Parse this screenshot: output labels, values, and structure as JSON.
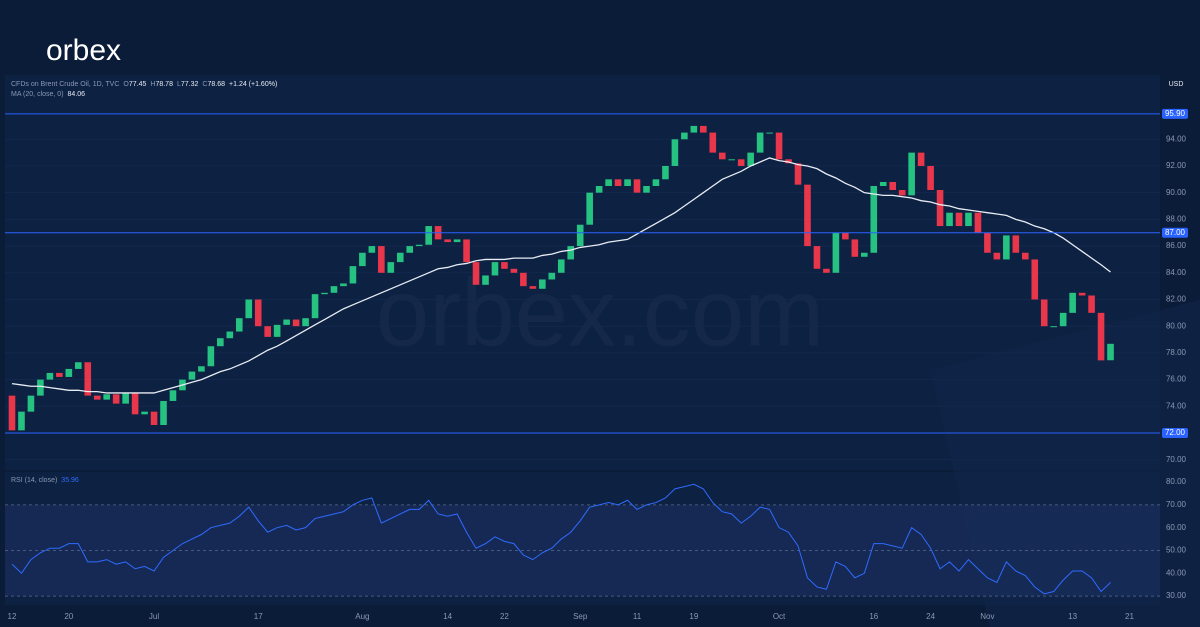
{
  "brand": "orbex",
  "watermark": "orbex.com",
  "chart_data": [
    {
      "type": "candlestick",
      "header": {
        "symbol": "CFDs on Brent Crude Oil, 1D, TVC",
        "open_label": "O",
        "high_label": "H",
        "high": 78.78,
        "low_label": "L",
        "low": 77.32,
        "close_label": "C",
        "change": "+1.24 (+1.60%)"
      },
      "currency": "USD",
      "categories": [
        "12",
        null,
        null,
        null,
        null,
        null,
        "20",
        null,
        null,
        null,
        null,
        null,
        null,
        null,
        null,
        "Jul",
        null,
        null,
        null,
        null,
        null,
        null,
        null,
        null,
        null,
        null,
        "17",
        null,
        null,
        null,
        null,
        null,
        null,
        null,
        null,
        null,
        null,
        "Aug",
        null,
        null,
        null,
        null,
        null,
        null,
        null,
        null,
        "14",
        null,
        null,
        null,
        null,
        null,
        "22",
        null,
        null,
        null,
        null,
        null,
        null,
        null,
        "Sep",
        null,
        null,
        null,
        null,
        null,
        "11",
        null,
        null,
        null,
        null,
        null,
        "19",
        null,
        null,
        null,
        null,
        null,
        null,
        null,
        null,
        "Oct",
        null,
        null,
        null,
        null,
        null,
        null,
        null,
        null,
        null,
        "16",
        null,
        null,
        null,
        null,
        null,
        "24",
        null,
        null,
        null,
        null,
        null,
        "Nov",
        null,
        null,
        null,
        null,
        null,
        null,
        null,
        null,
        "13",
        null,
        null,
        null,
        null,
        null,
        "21"
      ],
      "open": [
        74.8,
        72.2,
        73.6,
        74.8,
        76.0,
        76.5,
        76.2,
        76.8,
        77.3,
        74.8,
        74.5,
        74.9,
        74.2,
        75.0,
        73.4,
        73.6,
        72.6,
        74.4,
        75.2,
        76.0,
        76.6,
        77.0,
        78.5,
        79.1,
        79.6,
        80.6,
        82.0,
        80.0,
        79.2,
        80.1,
        80.5,
        80.0,
        80.6,
        82.4,
        82.5,
        83.0,
        83.2,
        84.5,
        85.5,
        86.0,
        84.0,
        84.8,
        85.5,
        86.0,
        86.1,
        87.5,
        86.5,
        86.3,
        86.5,
        84.8,
        83.1,
        83.8,
        84.8,
        84.3,
        84.0,
        83.0,
        82.8,
        83.5,
        84.0,
        85.0,
        86.0,
        87.6,
        90.0,
        90.5,
        91.0,
        90.5,
        91.0,
        90.0,
        90.5,
        91.0,
        92.0,
        94.0,
        94.5,
        95.0,
        94.5,
        93.0,
        92.5,
        92.5,
        92.0,
        93.0,
        94.5,
        94.5,
        92.5,
        92.2,
        90.6,
        86.0,
        84.3,
        84.0,
        87.0,
        86.5,
        85.2,
        85.5,
        90.5,
        90.8,
        90.2,
        89.8,
        93.0,
        92.0,
        90.2,
        87.5,
        88.5,
        87.5,
        88.5,
        87.0,
        85.5,
        85.0,
        86.8,
        85.5,
        85.0,
        82.0,
        80.0,
        80.0,
        81.0,
        82.5,
        82.3,
        81.0,
        77.45,
        null,
        null
      ],
      "close": [
        72.2,
        73.6,
        74.8,
        76.0,
        76.5,
        76.2,
        76.8,
        77.3,
        74.8,
        74.5,
        74.9,
        74.2,
        75.0,
        73.4,
        73.6,
        72.6,
        74.4,
        75.2,
        76.0,
        76.6,
        77.0,
        78.5,
        79.1,
        79.6,
        80.6,
        82.0,
        80.0,
        79.2,
        80.1,
        80.5,
        80.0,
        80.6,
        82.4,
        82.5,
        83.0,
        83.2,
        84.5,
        85.5,
        86.0,
        84.0,
        84.8,
        85.5,
        86.0,
        86.1,
        87.5,
        86.5,
        86.3,
        86.5,
        84.8,
        83.1,
        83.8,
        84.8,
        84.3,
        84.0,
        83.0,
        82.8,
        83.5,
        84.0,
        85.0,
        86.0,
        87.6,
        90.0,
        90.5,
        91.0,
        90.5,
        91.0,
        90.0,
        90.5,
        91.0,
        92.0,
        94.0,
        94.5,
        95.0,
        94.5,
        93.0,
        92.5,
        92.5,
        92.0,
        93.0,
        94.5,
        94.5,
        92.5,
        92.2,
        90.6,
        86.0,
        84.3,
        84.0,
        87.0,
        86.5,
        85.2,
        85.5,
        90.5,
        90.8,
        90.2,
        89.8,
        93.0,
        92.0,
        90.2,
        87.5,
        88.5,
        87.5,
        88.5,
        87.0,
        85.5,
        85.0,
        86.8,
        85.5,
        85.0,
        82.0,
        80.0,
        80.0,
        81.0,
        82.5,
        82.3,
        81.0,
        77.44,
        78.68,
        null,
        null
      ],
      "up_color": "#26c281",
      "down_color": "#e8364a",
      "ma": {
        "name": "MA (20, close, 0)",
        "color": "#e8ecf4",
        "values": [
          75.7,
          75.6,
          75.5,
          75.5,
          75.4,
          75.3,
          75.2,
          75.2,
          75.1,
          75.1,
          75.0,
          75.0,
          75.0,
          75.0,
          75.0,
          75.0,
          75.2,
          75.4,
          75.6,
          75.8,
          76.0,
          76.3,
          76.6,
          76.8,
          77.1,
          77.4,
          77.8,
          78.2,
          78.5,
          78.9,
          79.3,
          79.7,
          80.1,
          80.5,
          80.9,
          81.3,
          81.6,
          81.9,
          82.2,
          82.5,
          82.8,
          83.1,
          83.4,
          83.7,
          84.0,
          84.3,
          84.4,
          84.6,
          84.7,
          84.9,
          85.0,
          85.0,
          85.0,
          85.1,
          85.1,
          85.1,
          85.3,
          85.4,
          85.6,
          85.7,
          85.9,
          86.0,
          86.1,
          86.3,
          86.4,
          86.5,
          86.9,
          87.3,
          87.7,
          88.1,
          88.5,
          89.0,
          89.5,
          90.0,
          90.5,
          91.0,
          91.3,
          91.6,
          92.0,
          92.3,
          92.6,
          92.4,
          92.3,
          92.1,
          92.0,
          91.8,
          91.4,
          91.1,
          90.7,
          90.4,
          90.0,
          89.9,
          89.8,
          89.8,
          89.7,
          89.6,
          89.4,
          89.3,
          89.1,
          89.0,
          88.8,
          88.7,
          88.6,
          88.5,
          88.4,
          88.3,
          88.0,
          87.8,
          87.5,
          87.3,
          87.0,
          86.6,
          86.1,
          85.6,
          85.1,
          84.6,
          84.06,
          null,
          null
        ]
      },
      "ylim": [
        69.23,
        97.54
      ],
      "yticks": [
        {
          "value": 70,
          "label": "70.00"
        },
        {
          "value": 72,
          "label": "72.00"
        },
        {
          "value": 74,
          "label": "74.00"
        },
        {
          "value": 76,
          "label": "76.00"
        },
        {
          "value": 78,
          "label": "78.00"
        },
        {
          "value": 80,
          "label": "80.00"
        },
        {
          "value": 82,
          "label": "82.00"
        },
        {
          "value": 84,
          "label": "84.00"
        },
        {
          "value": 86,
          "label": "86.00"
        },
        {
          "value": 88,
          "label": "88.00"
        },
        {
          "value": 90,
          "label": "90.00"
        },
        {
          "value": 92,
          "label": "92.00"
        },
        {
          "value": 94,
          "label": "94.00"
        }
      ],
      "levels": [
        {
          "value": 95.9,
          "label": "95.90"
        },
        {
          "value": 87,
          "label": "87.00"
        },
        {
          "value": 72,
          "label": "72.00"
        }
      ],
      "level_color": "#2962ff",
      "grid": true
    },
    {
      "type": "line",
      "name": "RSI (14, close)",
      "color": "#2f6bff",
      "values": [
        44,
        40,
        46,
        49,
        51,
        51,
        53,
        53,
        45,
        45,
        46,
        44,
        45,
        42,
        43,
        41,
        47,
        50,
        53,
        55,
        57,
        60,
        61,
        62,
        65,
        69,
        63,
        58,
        60,
        61,
        59,
        60,
        64,
        65,
        66,
        67,
        70,
        72,
        73,
        62,
        64,
        66,
        68,
        68,
        72,
        66,
        65,
        66,
        58,
        51,
        53,
        56,
        54,
        53,
        48,
        46,
        49,
        51,
        55,
        58,
        63,
        69,
        70,
        71,
        70,
        72,
        68,
        70,
        71,
        73,
        77,
        78,
        79,
        77,
        71,
        67,
        66,
        62,
        65,
        69,
        68,
        60,
        58,
        52,
        38,
        34,
        33,
        45,
        43,
        38,
        40,
        53,
        53,
        52,
        51,
        60,
        57,
        51,
        42,
        45,
        41,
        46,
        42,
        38,
        36,
        45,
        41,
        39,
        34,
        31,
        32,
        37,
        41,
        41,
        38,
        32,
        35.96,
        null,
        null
      ],
      "ylim": [
        26.1,
        84.4
      ],
      "yticks": [
        {
          "value": 30,
          "label": "30.00"
        },
        {
          "value": 40,
          "label": "40.00"
        },
        {
          "value": 50,
          "label": "50.00"
        },
        {
          "value": 60,
          "label": "60.00"
        },
        {
          "value": 70,
          "label": "70.00"
        },
        {
          "value": 80,
          "label": "80.00"
        }
      ],
      "band": [
        30,
        70
      ],
      "dashed": [
        30,
        50,
        70
      ]
    }
  ]
}
